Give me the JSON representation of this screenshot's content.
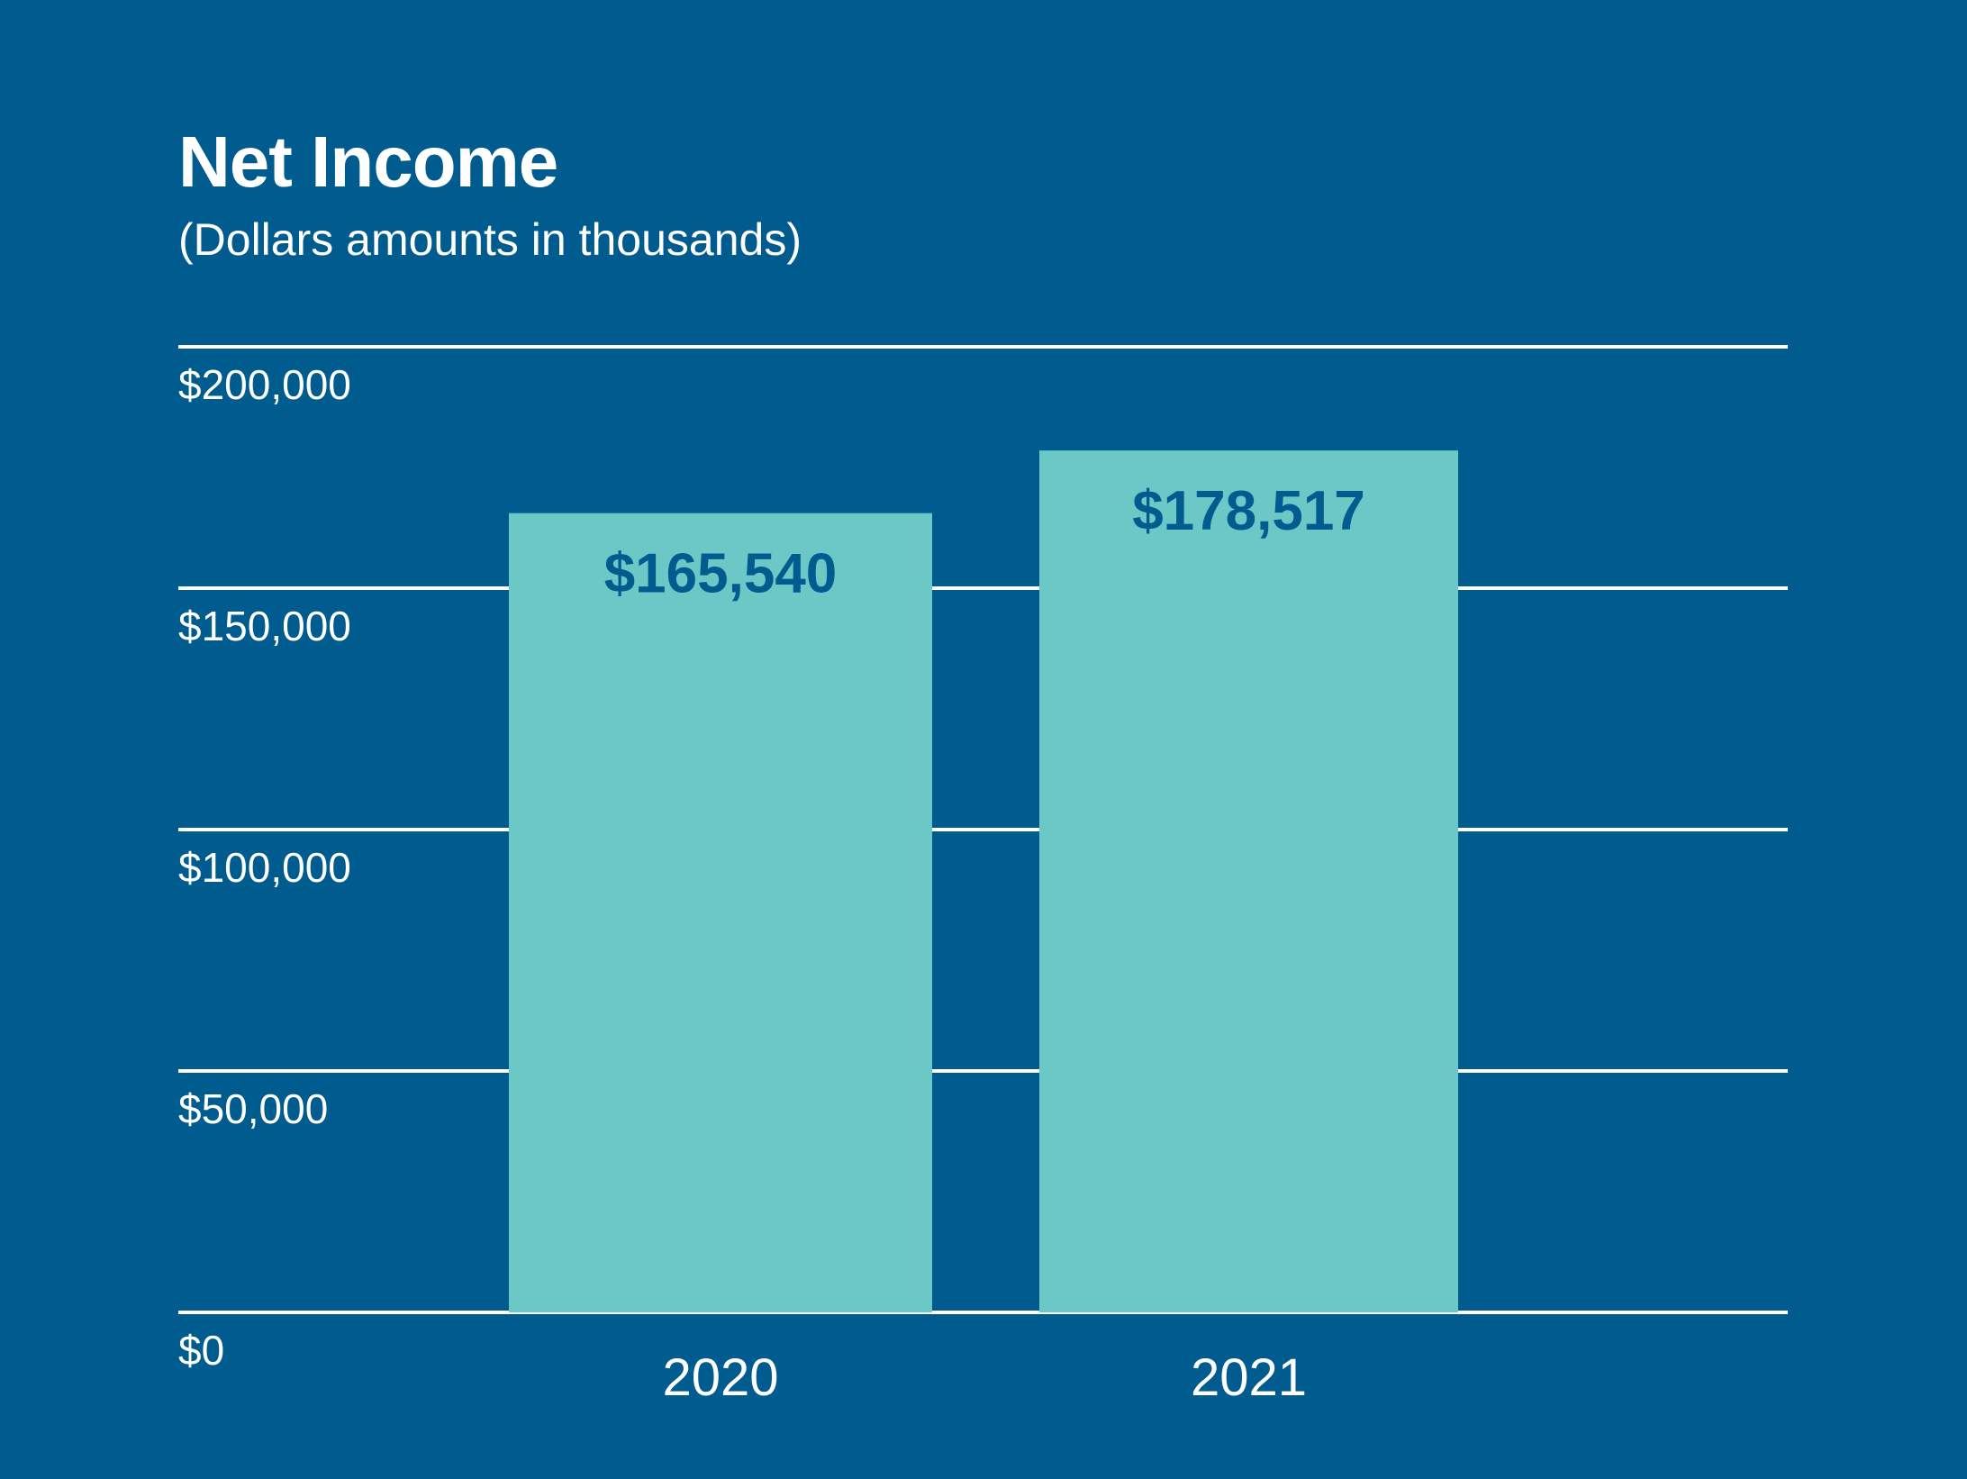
{
  "chart_data": {
    "type": "bar",
    "title": "Net Income",
    "subtitle": "(Dollars amounts in thousands)",
    "categories": [
      "2020",
      "2021"
    ],
    "values": [
      165540,
      178517
    ],
    "data_labels": [
      "$165,540",
      "$178,517"
    ],
    "y_ticks": [
      0,
      50000,
      100000,
      150000,
      200000
    ],
    "y_tick_labels": [
      "$0",
      "$50,000",
      "$100,000",
      "$150,000",
      "$200,000"
    ],
    "ylim": [
      0,
      200000
    ],
    "grid": true,
    "legend": "none",
    "xlabel": "",
    "ylabel": ""
  },
  "colors": {
    "background": "#005b8f",
    "bar": "#6bc8c6",
    "data_label": "#005b8f",
    "gridline": "#ffffff",
    "text": "#ffffff"
  }
}
